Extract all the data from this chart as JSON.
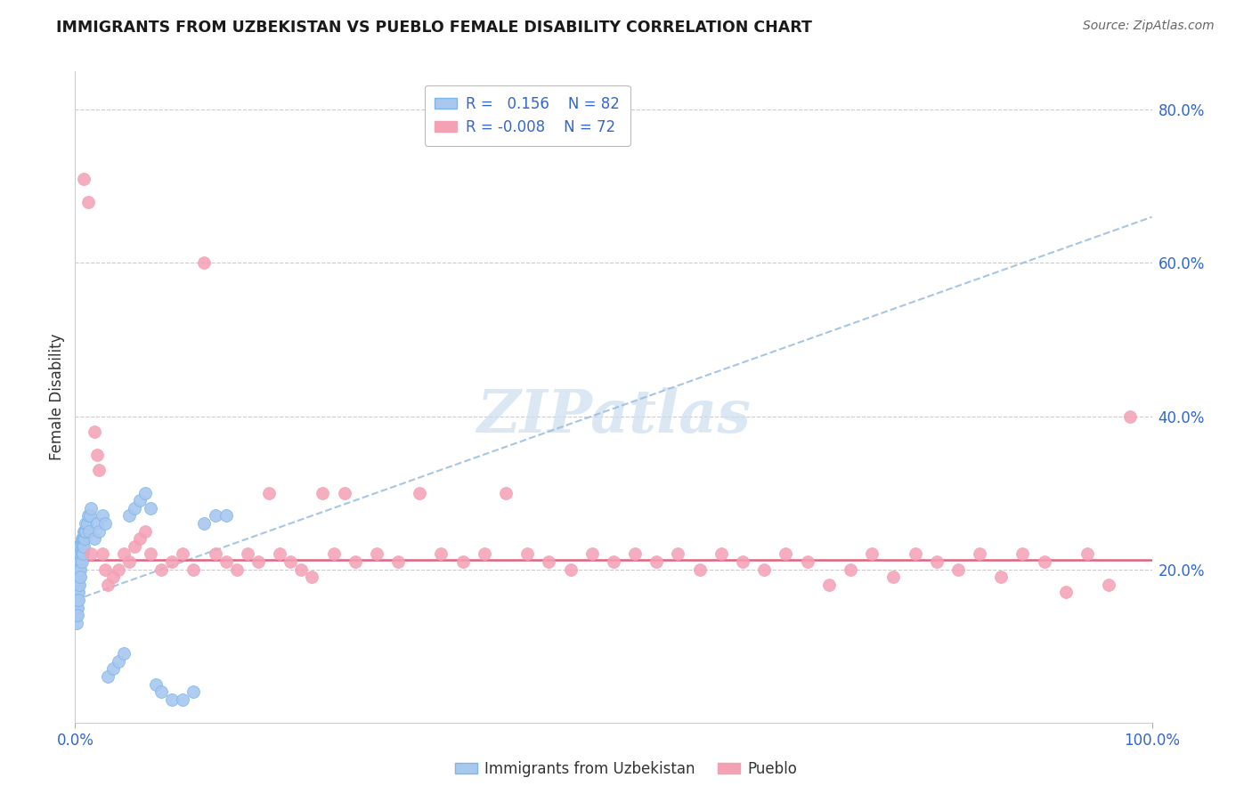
{
  "title": "IMMIGRANTS FROM UZBEKISTAN VS PUEBLO FEMALE DISABILITY CORRELATION CHART",
  "source": "Source: ZipAtlas.com",
  "ylabel": "Female Disability",
  "color_blue": "#A8C8F0",
  "color_blue_edge": "#7EB6E8",
  "color_blue_line": "#99BBDD",
  "color_pink": "#F4A0B5",
  "color_pink_edge": "#F4A0B5",
  "color_pink_line": "#E05878",
  "color_grid": "#CCCCCC",
  "color_tick_label": "#3366CC",
  "color_title": "#1A1A1A",
  "color_source": "#666666",
  "watermark_color": "#CCDDEE",
  "blue_x": [
    0.001,
    0.001,
    0.001,
    0.001,
    0.001,
    0.001,
    0.001,
    0.001,
    0.001,
    0.001,
    0.002,
    0.002,
    0.002,
    0.002,
    0.002,
    0.002,
    0.002,
    0.002,
    0.002,
    0.002,
    0.003,
    0.003,
    0.003,
    0.003,
    0.003,
    0.003,
    0.003,
    0.003,
    0.004,
    0.004,
    0.004,
    0.004,
    0.004,
    0.004,
    0.005,
    0.005,
    0.005,
    0.005,
    0.005,
    0.006,
    0.006,
    0.006,
    0.006,
    0.007,
    0.007,
    0.007,
    0.008,
    0.008,
    0.008,
    0.009,
    0.009,
    0.01,
    0.01,
    0.011,
    0.012,
    0.013,
    0.014,
    0.015,
    0.018,
    0.02,
    0.022,
    0.025,
    0.028,
    0.03,
    0.035,
    0.04,
    0.045,
    0.05,
    0.055,
    0.06,
    0.065,
    0.07,
    0.075,
    0.08,
    0.09,
    0.1,
    0.11,
    0.12,
    0.13,
    0.14
  ],
  "blue_y": [
    0.18,
    0.19,
    0.17,
    0.2,
    0.16,
    0.21,
    0.15,
    0.14,
    0.22,
    0.13,
    0.19,
    0.18,
    0.2,
    0.17,
    0.21,
    0.16,
    0.22,
    0.15,
    0.23,
    0.14,
    0.2,
    0.19,
    0.18,
    0.21,
    0.17,
    0.22,
    0.16,
    0.23,
    0.21,
    0.2,
    0.19,
    0.22,
    0.18,
    0.23,
    0.22,
    0.21,
    0.2,
    0.23,
    0.19,
    0.23,
    0.22,
    0.21,
    0.24,
    0.24,
    0.23,
    0.22,
    0.24,
    0.23,
    0.25,
    0.24,
    0.25,
    0.25,
    0.26,
    0.26,
    0.27,
    0.25,
    0.27,
    0.28,
    0.24,
    0.26,
    0.25,
    0.27,
    0.26,
    0.06,
    0.07,
    0.08,
    0.09,
    0.27,
    0.28,
    0.29,
    0.3,
    0.28,
    0.05,
    0.04,
    0.03,
    0.03,
    0.04,
    0.26,
    0.27,
    0.27
  ],
  "pink_x": [
    0.008,
    0.012,
    0.015,
    0.018,
    0.02,
    0.022,
    0.025,
    0.028,
    0.03,
    0.035,
    0.04,
    0.045,
    0.05,
    0.055,
    0.06,
    0.065,
    0.07,
    0.08,
    0.09,
    0.1,
    0.11,
    0.12,
    0.13,
    0.14,
    0.15,
    0.16,
    0.17,
    0.18,
    0.19,
    0.2,
    0.21,
    0.22,
    0.23,
    0.24,
    0.25,
    0.26,
    0.28,
    0.3,
    0.32,
    0.34,
    0.36,
    0.38,
    0.4,
    0.42,
    0.44,
    0.46,
    0.48,
    0.5,
    0.52,
    0.54,
    0.56,
    0.58,
    0.6,
    0.62,
    0.64,
    0.66,
    0.68,
    0.7,
    0.72,
    0.74,
    0.76,
    0.78,
    0.8,
    0.82,
    0.84,
    0.86,
    0.88,
    0.9,
    0.92,
    0.94,
    0.96,
    0.98
  ],
  "pink_y": [
    0.71,
    0.68,
    0.22,
    0.38,
    0.35,
    0.33,
    0.22,
    0.2,
    0.18,
    0.19,
    0.2,
    0.22,
    0.21,
    0.23,
    0.24,
    0.25,
    0.22,
    0.2,
    0.21,
    0.22,
    0.2,
    0.6,
    0.22,
    0.21,
    0.2,
    0.22,
    0.21,
    0.3,
    0.22,
    0.21,
    0.2,
    0.19,
    0.3,
    0.22,
    0.3,
    0.21,
    0.22,
    0.21,
    0.3,
    0.22,
    0.21,
    0.22,
    0.3,
    0.22,
    0.21,
    0.2,
    0.22,
    0.21,
    0.22,
    0.21,
    0.22,
    0.2,
    0.22,
    0.21,
    0.2,
    0.22,
    0.21,
    0.18,
    0.2,
    0.22,
    0.19,
    0.22,
    0.21,
    0.2,
    0.22,
    0.19,
    0.22,
    0.21,
    0.17,
    0.22,
    0.18,
    0.4
  ],
  "blue_line_x": [
    0.0,
    1.0
  ],
  "blue_line_y": [
    0.16,
    0.66
  ],
  "pink_line_y": [
    0.212,
    0.212
  ],
  "xlim": [
    0.0,
    1.0
  ],
  "ylim": [
    0.0,
    0.85
  ],
  "ytick_positions": [
    0.2,
    0.4,
    0.6,
    0.8
  ],
  "ytick_labels": [
    "20.0%",
    "40.0%",
    "60.0%",
    "80.0%"
  ],
  "xtick_positions": [
    0.0,
    1.0
  ],
  "xtick_labels": [
    "0.0%",
    "100.0%"
  ]
}
